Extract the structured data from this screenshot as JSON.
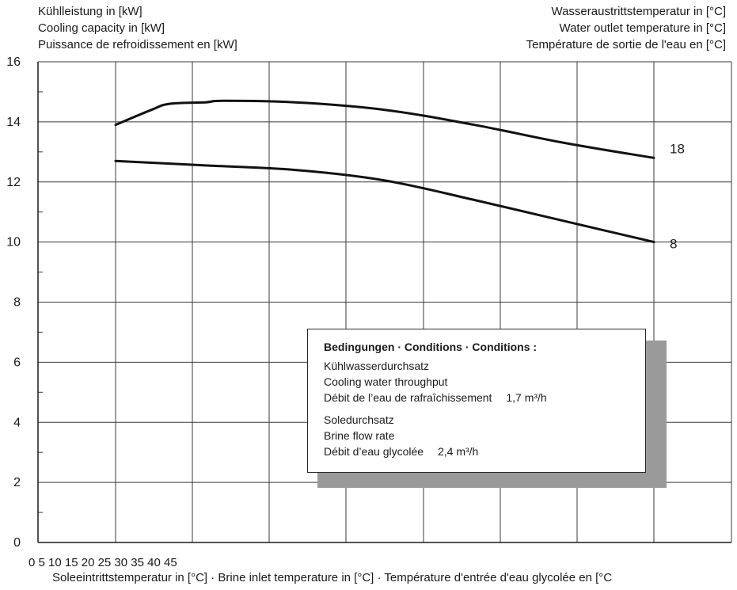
{
  "chart_data": {
    "type": "line",
    "title": "",
    "ylabel_lines": [
      "Kühlleistung in [kW]",
      "Cooling capacity in [kW]",
      "Puissance de refroidissement en [kW]"
    ],
    "series_label_lines": [
      "Wasseraustrittstemperatur in [°C]",
      "Water outlet temperature in [°C]",
      "Température de sortie de l'eau en [°C]"
    ],
    "xlabel": "Soleeintrittstemperatur in [°C] · Brine inlet temperature in [°C] · Température d'entrée d'eau glycolée en [°C",
    "x_tick_labels_text": "0 5 10 15 20 25 30 35 40 45",
    "xlim": [
      0,
      45
    ],
    "ylim": [
      0,
      16
    ],
    "y_ticks": [
      0,
      2,
      4,
      6,
      8,
      10,
      12,
      14,
      16
    ],
    "grid": true,
    "series": [
      {
        "name": "18",
        "x": [
          10,
          12,
          13,
          15,
          16,
          20,
          25,
          30,
          35,
          40
        ],
        "values": [
          13.9,
          14.4,
          14.6,
          14.65,
          14.7,
          14.65,
          14.4,
          13.9,
          13.3,
          12.8
        ]
      },
      {
        "name": "8",
        "x": [
          10,
          15,
          20,
          25,
          30,
          35,
          40
        ],
        "values": [
          12.7,
          12.55,
          12.4,
          12.05,
          11.4,
          10.7,
          10.0
        ]
      }
    ],
    "annotations": {
      "title": "Bedingungen · Conditions · Conditions :",
      "cooling_water_lines": [
        "Kühlwasserdurchsatz",
        "Cooling water throughput",
        "Débit de l’eau de rafraîchissement"
      ],
      "cooling_water_value": "1,7 m³/h",
      "brine_lines": [
        "Soledurchsatz",
        "Brine flow rate",
        "Débit d’eau glycolée"
      ],
      "brine_value": "2,4 m³/h"
    }
  }
}
